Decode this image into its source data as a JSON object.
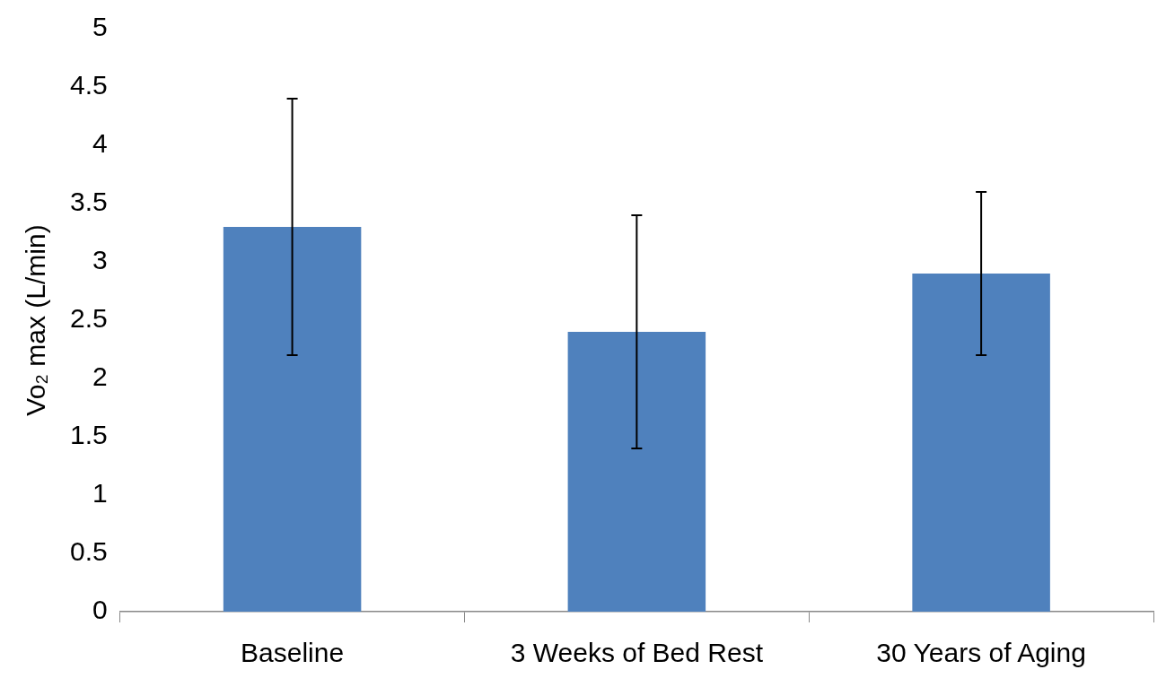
{
  "chart_data": {
    "type": "bar",
    "ylabel": "Vo₂ max (L/min)",
    "categories": [
      "Baseline",
      "3 Weeks of Bed Rest",
      "30 Years of Aging"
    ],
    "values": [
      3.3,
      2.4,
      2.9
    ],
    "errors": [
      1.1,
      1.0,
      0.7
    ],
    "color": "#4f81bd",
    "ylim": [
      0,
      5
    ],
    "yticks": [
      0,
      0.5,
      1,
      1.5,
      2,
      2.5,
      3,
      3.5,
      4,
      4.5,
      5
    ],
    "grid": false,
    "legend": false
  }
}
